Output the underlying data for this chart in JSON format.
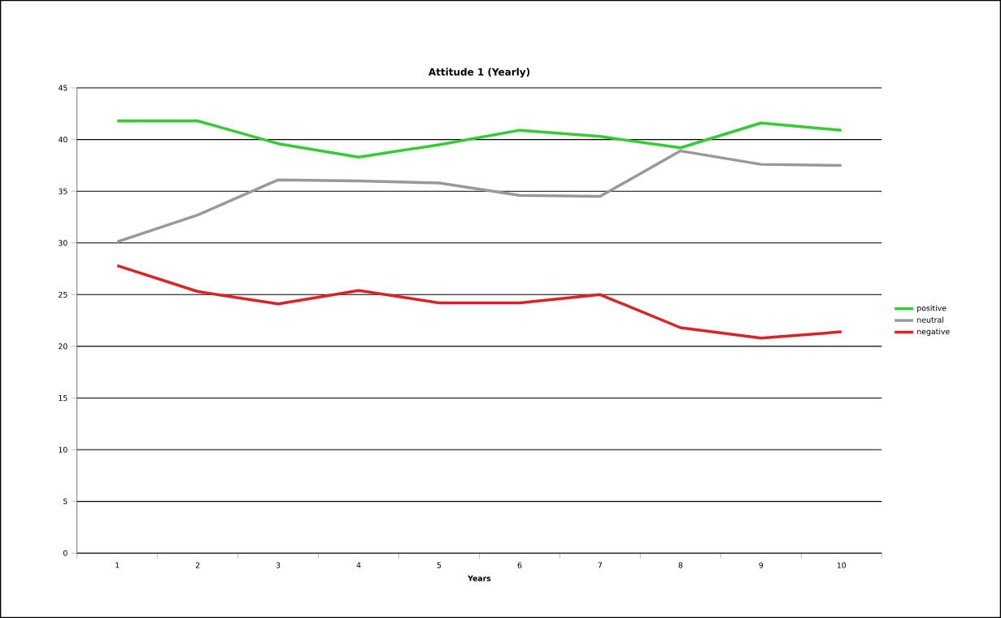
{
  "chart_data": {
    "type": "line",
    "title": "Attitude 1 (Yearly)",
    "xlabel": "Years",
    "categories": [
      "1",
      "2",
      "3",
      "4",
      "5",
      "6",
      "7",
      "8",
      "9",
      "10"
    ],
    "series": [
      {
        "name": "positive",
        "color": "#33cc33",
        "values": [
          41.8,
          41.8,
          39.6,
          38.3,
          39.5,
          40.9,
          40.3,
          39.2,
          41.6,
          40.9
        ]
      },
      {
        "name": "neutral",
        "color": "#999999",
        "values": [
          30.1,
          32.7,
          36.1,
          36.0,
          35.8,
          34.6,
          34.5,
          38.9,
          37.6,
          37.5
        ]
      },
      {
        "name": "negative",
        "color": "#dd2222",
        "values": [
          27.8,
          25.3,
          24.1,
          25.4,
          24.2,
          24.2,
          25.0,
          21.8,
          20.8,
          21.4
        ]
      }
    ],
    "ylim": [
      0,
      45
    ],
    "yticks": [
      0,
      5,
      10,
      15,
      20,
      25,
      30,
      35,
      40,
      45
    ],
    "grid": "y",
    "legend": "right",
    "marker": "none",
    "line_style": "solid"
  }
}
